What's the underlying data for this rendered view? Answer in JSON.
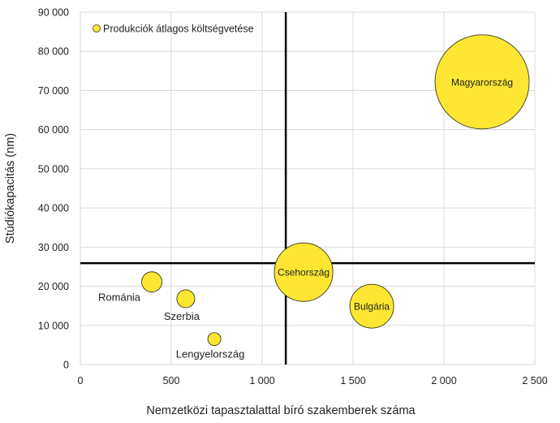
{
  "chart_data": {
    "type": "bubble",
    "title": "",
    "xlabel": "Nemzetközi tapasztalattal bíró szakemberek száma",
    "ylabel": "Stúdiókapacitás (nm)",
    "xlim": [
      0,
      2500
    ],
    "ylim": [
      0,
      90000
    ],
    "x_ticks": [
      0,
      500,
      1000,
      1500,
      2000,
      2500
    ],
    "x_tick_labels": [
      "0",
      "500",
      "1 000",
      "1 500",
      "2 000",
      "2 500"
    ],
    "y_ticks": [
      0,
      10000,
      20000,
      30000,
      40000,
      50000,
      60000,
      70000,
      80000,
      90000
    ],
    "y_tick_labels": [
      "0",
      "10 000",
      "20 000",
      "30 000",
      "40 000",
      "50 000",
      "60 000",
      "70 000",
      "80 000",
      "90 000"
    ],
    "grid": true,
    "legend": {
      "position": "top-left",
      "entries": [
        "Produkciók átlagos költségvetése"
      ]
    },
    "bubble_color": "#FFE632",
    "bubble_edge": "#3a3a1a",
    "reference_lines": {
      "x": 1130,
      "y": 25900
    },
    "series": [
      {
        "name": "Produkciók átlagos költségvetése",
        "points": [
          {
            "label": "Románia",
            "x": 393,
            "y": 21100,
            "size": 156,
            "label_pos": "below-left"
          },
          {
            "label": "Szerbia",
            "x": 580,
            "y": 16800,
            "size": 121,
            "label_pos": "below"
          },
          {
            "label": "Lengyelország",
            "x": 737,
            "y": 6500,
            "size": 64,
            "label_pos": "below"
          },
          {
            "label": "Csehország",
            "x": 1228,
            "y": 23600,
            "size": 1300,
            "label_pos": "center"
          },
          {
            "label": "Bulgária",
            "x": 1603,
            "y": 14900,
            "size": 729,
            "label_pos": "center"
          },
          {
            "label": "Magyarország",
            "x": 2210,
            "y": 72200,
            "size": 3364,
            "label_pos": "center"
          }
        ]
      }
    ]
  }
}
